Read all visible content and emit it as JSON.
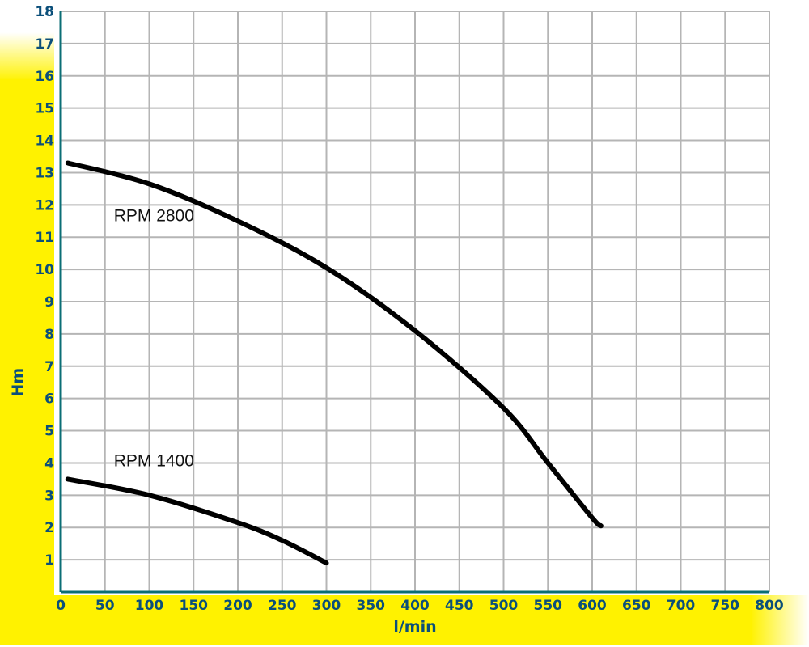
{
  "colors": {
    "background": "#ffffff",
    "band": "#fff200",
    "grid": "#b5b5b5",
    "axis": "#0b6e75",
    "tick_text": "#0b4f7a",
    "curve": "#000000"
  },
  "chart_data": {
    "type": "line",
    "title": "",
    "xlabel": "l/min",
    "ylabel": "Hm",
    "xlim": [
      0,
      800
    ],
    "ylim": [
      0,
      18
    ],
    "grid": true,
    "legend": "none",
    "x_ticks": [
      0,
      50,
      100,
      150,
      200,
      250,
      300,
      350,
      400,
      450,
      500,
      550,
      600,
      650,
      700,
      750,
      800
    ],
    "x_tick_labels": [
      "0",
      "50",
      "100",
      "150",
      "200",
      "250",
      "300",
      "350",
      "400",
      "450",
      "500",
      "550",
      "600",
      "650",
      "700",
      "750",
      "800"
    ],
    "y_ticks": [
      1,
      2,
      3,
      4,
      5,
      6,
      7,
      8,
      9,
      10,
      11,
      12,
      13,
      14,
      15,
      16,
      17,
      18
    ],
    "y_tick_labels": [
      "1",
      "2",
      "3",
      "4",
      "5",
      "6",
      "7",
      "8",
      "9",
      "10",
      "11",
      "12",
      "13",
      "14",
      "15",
      "16",
      "17",
      "18"
    ],
    "series": [
      {
        "name": "RPM 2800",
        "x": [
          8,
          100,
          200,
          300,
          400,
          500,
          550,
          600,
          610
        ],
        "y": [
          13.3,
          12.65,
          11.5,
          10.05,
          8.1,
          5.7,
          4.0,
          2.3,
          2.05
        ]
      },
      {
        "name": "RPM 1400",
        "x": [
          8,
          100,
          200,
          250,
          300
        ],
        "y": [
          3.5,
          3.0,
          2.15,
          1.6,
          0.9
        ]
      }
    ]
  }
}
